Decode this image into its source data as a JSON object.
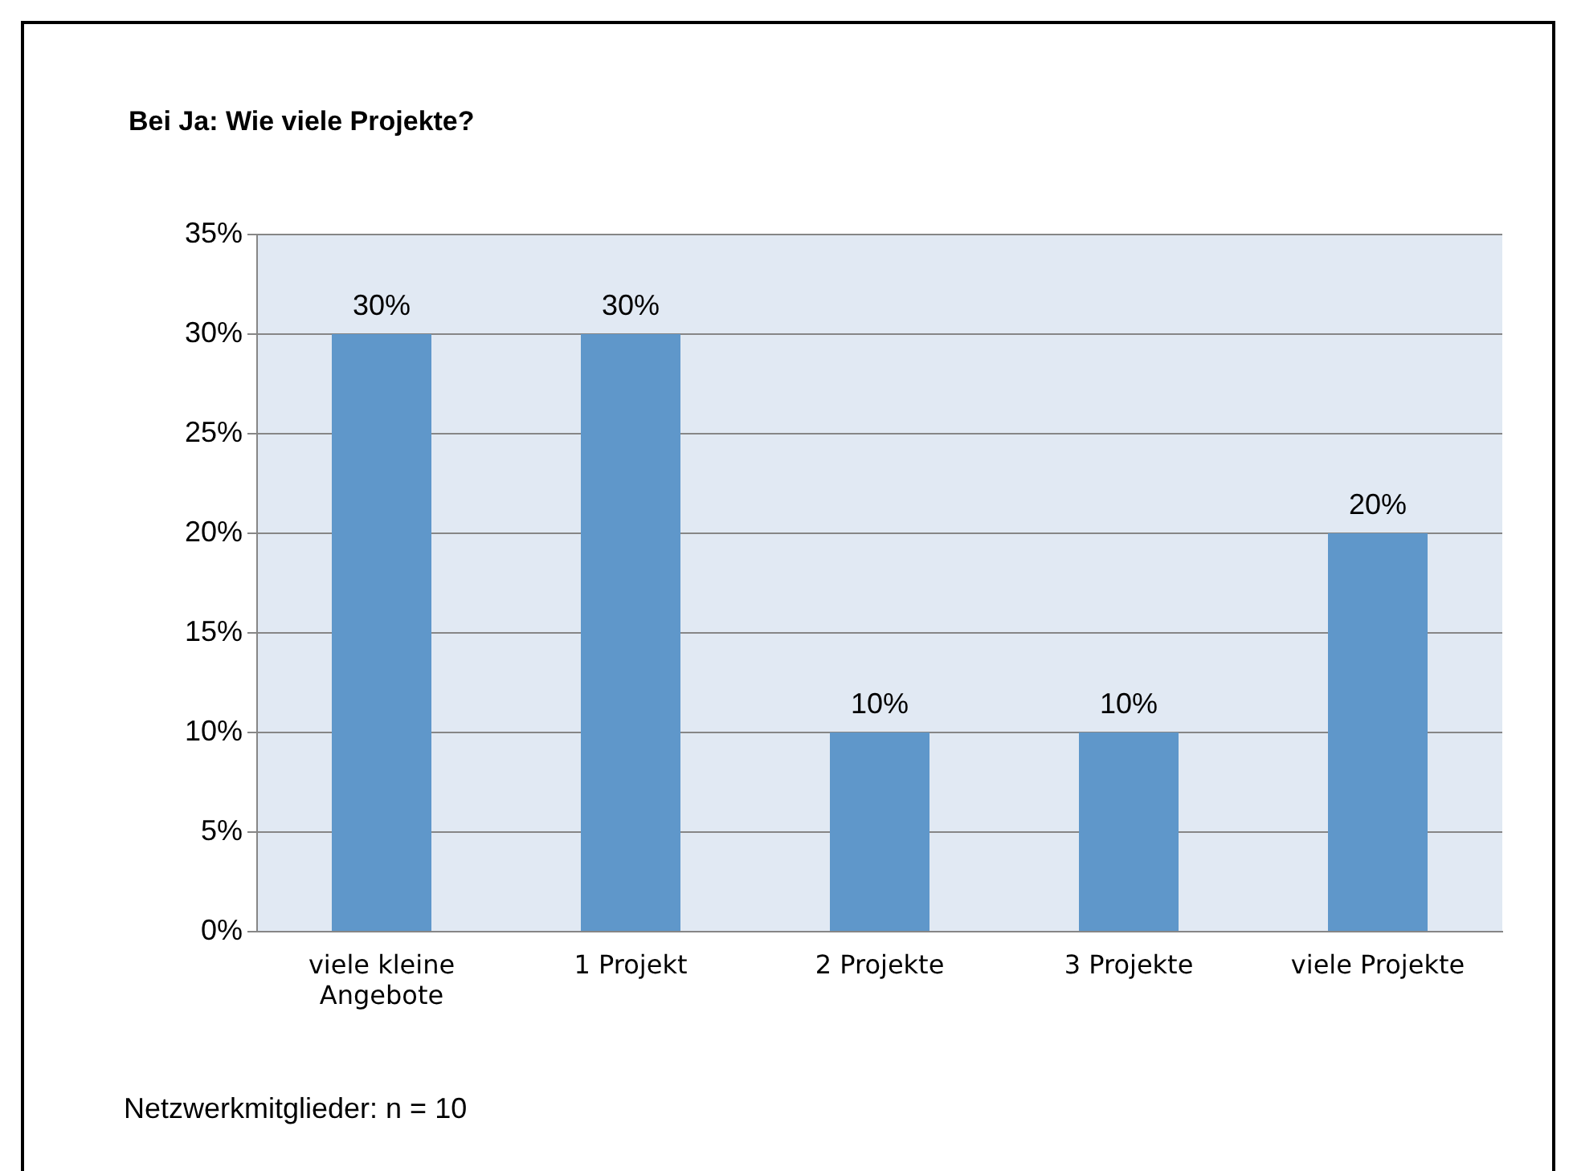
{
  "chart_data": {
    "type": "bar",
    "title": "Bei Ja: Wie viele Projekte?",
    "categories": [
      "viele kleine Angebote",
      "1 Projekt",
      "2 Projekte",
      "3 Projekte",
      "viele Projekte"
    ],
    "values": [
      30,
      30,
      10,
      10,
      20
    ],
    "color": "#5f97ca",
    "value_labels": [
      "30%",
      "30%",
      "10%",
      "10%",
      "20%"
    ],
    "ylim": [
      0,
      35
    ],
    "yticks": [
      {
        "value": 0,
        "label": "0%"
      },
      {
        "value": 5,
        "label": "5%"
      },
      {
        "value": 10,
        "label": "10%"
      },
      {
        "value": 15,
        "label": "15%"
      },
      {
        "value": 20,
        "label": "20%"
      },
      {
        "value": 25,
        "label": "25%"
      },
      {
        "value": 30,
        "label": "30%"
      },
      {
        "value": 35,
        "label": "35%"
      }
    ],
    "grid": "y",
    "legend": false,
    "annotations": [
      "Netzwerkmitglieder: n = 10"
    ]
  }
}
